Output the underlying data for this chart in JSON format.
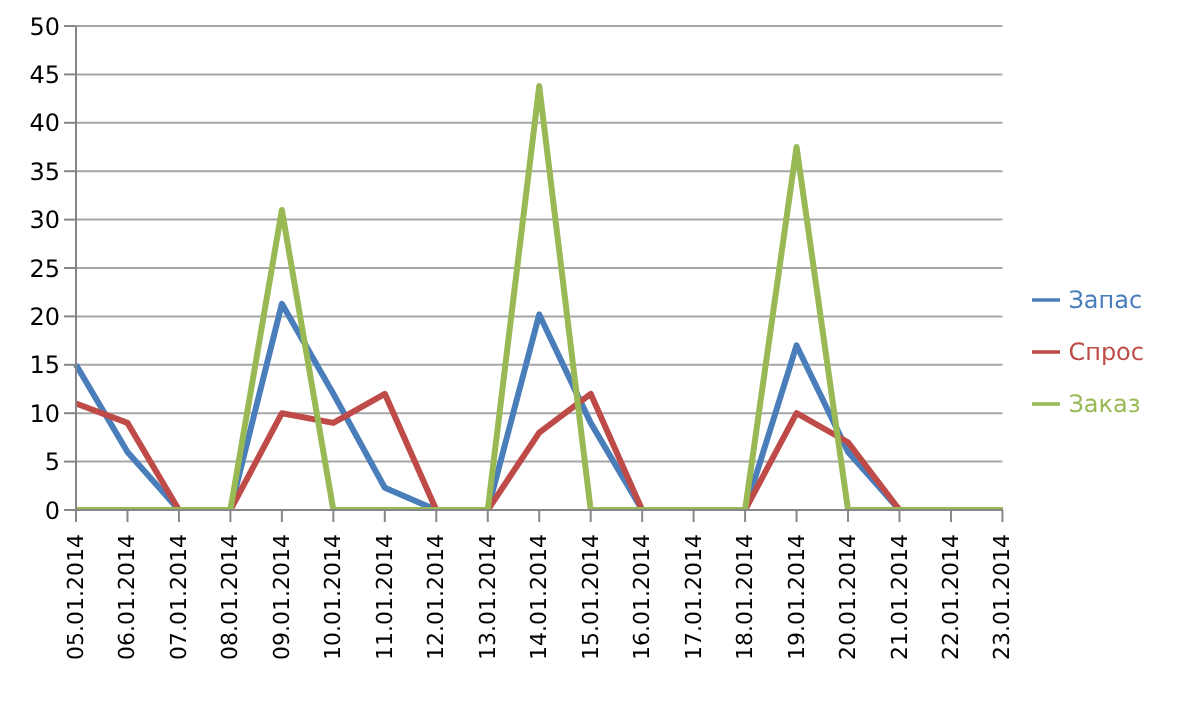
{
  "chart_data": {
    "type": "line",
    "categories": [
      "05.01.2014",
      "06.01.2014",
      "07.01.2014",
      "08.01.2014",
      "09.01.2014",
      "10.01.2014",
      "11.01.2014",
      "12.01.2014",
      "13.01.2014",
      "14.01.2014",
      "15.01.2014",
      "16.01.2014",
      "17.01.2014",
      "18.01.2014",
      "19.01.2014",
      "20.01.2014",
      "21.01.2014",
      "22.01.2014",
      "23.01.2014"
    ],
    "series": [
      {
        "name": "Запас",
        "color": "#4a7ebb",
        "values": [
          15,
          6,
          0,
          0,
          21.3,
          12,
          2.3,
          0,
          0,
          20.2,
          9,
          0,
          0,
          0,
          17,
          6,
          0,
          0,
          0
        ]
      },
      {
        "name": "Спрос",
        "color": "#be4b48",
        "values": [
          11,
          9,
          0,
          0,
          10,
          9,
          12,
          0,
          0,
          8,
          12,
          0,
          0,
          0,
          10,
          7,
          0,
          0,
          0
        ]
      },
      {
        "name": "Заказ",
        "color": "#98b954",
        "values": [
          0,
          0,
          0,
          0,
          31,
          0,
          0,
          0,
          0,
          43.8,
          0,
          0,
          0,
          0,
          37.5,
          0,
          0,
          0,
          0
        ]
      }
    ],
    "ylim": [
      0,
      50
    ],
    "yticks": [
      0,
      5,
      10,
      15,
      20,
      25,
      30,
      35,
      40,
      45,
      50
    ],
    "grid": "y",
    "legend": "right",
    "marker": "none",
    "line_style": "solid"
  }
}
